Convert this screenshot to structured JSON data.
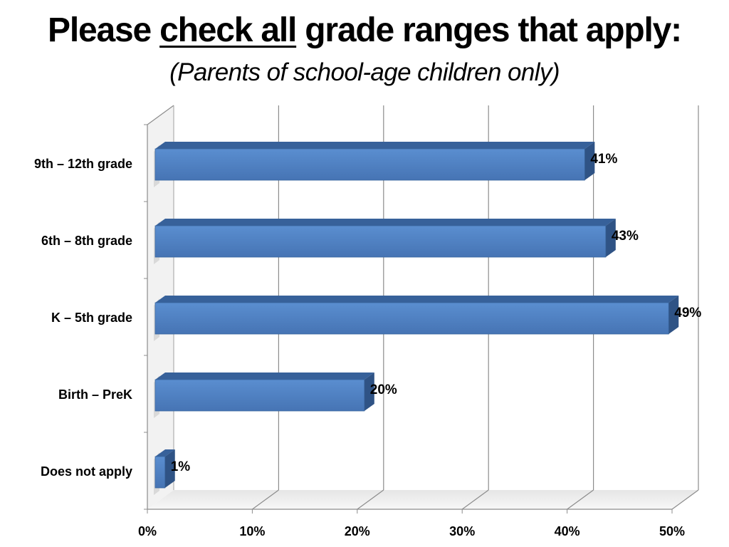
{
  "title": {
    "prefix": "Please",
    "emphasis": "check all",
    "suffix": "grade ranges that apply:",
    "subtitle": "(Parents of school-age children only)"
  },
  "chart_data": {
    "type": "bar",
    "orientation": "horizontal",
    "style": "3d",
    "categories": [
      "9th – 12th grade",
      "6th – 8th grade",
      "K – 5th grade",
      "Birth – PreK",
      "Does not apply"
    ],
    "values": [
      41,
      43,
      49,
      20,
      1
    ],
    "data_labels": [
      "41%",
      "43%",
      "49%",
      "20%",
      "1%"
    ],
    "xlim": [
      0,
      50
    ],
    "x_ticks": [
      0,
      10,
      20,
      30,
      40,
      50
    ],
    "x_tick_labels": [
      "0%",
      "10%",
      "20%",
      "30%",
      "40%",
      "50%"
    ],
    "xlabel": "",
    "ylabel": "",
    "grid": true,
    "legend": "none",
    "bar_color": "#4F81BD"
  }
}
